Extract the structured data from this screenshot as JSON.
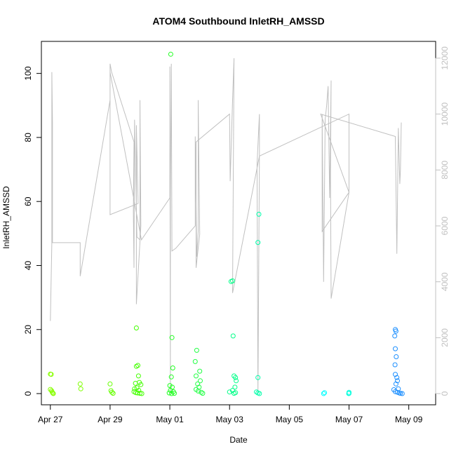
{
  "chart_data": {
    "type": "scatter",
    "title": "ATOM4 Southbound InletRH_AMSSD",
    "xlabel": "Date",
    "ylabel": "InletRH_AMSSD",
    "xlim": [
      -0.3,
      12.9
    ],
    "ylim": [
      -3.5,
      110
    ],
    "y2lim": [
      -400,
      12600
    ],
    "x_ticks": [
      {
        "value": 0,
        "label": "Apr 27"
      },
      {
        "value": 2,
        "label": "Apr 29"
      },
      {
        "value": 4,
        "label": "May 01"
      },
      {
        "value": 6,
        "label": "May 03"
      },
      {
        "value": 8,
        "label": "May 05"
      },
      {
        "value": 10,
        "label": "May 07"
      },
      {
        "value": 12,
        "label": "May 09"
      }
    ],
    "y_ticks": [
      0,
      20,
      40,
      60,
      80,
      100
    ],
    "y2_ticks": [
      0,
      2000,
      4000,
      6000,
      8000,
      10000,
      12000
    ],
    "colors": {
      "axis": "#000000",
      "secondary_axis": "#c0c0c0",
      "line": "#c0c0c0"
    },
    "series": [
      {
        "name": "InletRH_AMSSD",
        "kind": "points",
        "points": [
          {
            "x": 0.0,
            "y": 6.1,
            "color": "#88ff00"
          },
          {
            "x": 0.03,
            "y": 6.0,
            "color": "#88ff00"
          },
          {
            "x": 0.0,
            "y": 1.3,
            "color": "#88ff00"
          },
          {
            "x": 0.04,
            "y": 0.9,
            "color": "#88ff00"
          },
          {
            "x": 0.06,
            "y": 0.5,
            "color": "#88ff00"
          },
          {
            "x": 0.08,
            "y": 0.2,
            "color": "#88ff00"
          },
          {
            "x": 0.1,
            "y": 0.0,
            "color": "#88ff00"
          },
          {
            "x": 1.0,
            "y": 3.0,
            "color": "#7fff00"
          },
          {
            "x": 1.02,
            "y": 1.5,
            "color": "#7fff00"
          },
          {
            "x": 2.0,
            "y": 3.0,
            "color": "#66ff00"
          },
          {
            "x": 2.03,
            "y": 0.9,
            "color": "#66ff00"
          },
          {
            "x": 2.06,
            "y": 0.4,
            "color": "#66ff00"
          },
          {
            "x": 2.1,
            "y": 0.1,
            "color": "#66ff00"
          },
          {
            "x": 2.88,
            "y": 20.5,
            "color": "#44ff00"
          },
          {
            "x": 2.88,
            "y": 8.5,
            "color": "#44ff00"
          },
          {
            "x": 2.93,
            "y": 8.8,
            "color": "#44ff00"
          },
          {
            "x": 2.95,
            "y": 5.5,
            "color": "#44ff00"
          },
          {
            "x": 2.85,
            "y": 3.2,
            "color": "#44ff00"
          },
          {
            "x": 2.98,
            "y": 3.5,
            "color": "#44ff00"
          },
          {
            "x": 3.03,
            "y": 2.8,
            "color": "#44ff00"
          },
          {
            "x": 2.82,
            "y": 1.5,
            "color": "#44ff00"
          },
          {
            "x": 2.9,
            "y": 1.8,
            "color": "#44ff00"
          },
          {
            "x": 2.96,
            "y": 1.0,
            "color": "#44ff00"
          },
          {
            "x": 2.8,
            "y": 0.6,
            "color": "#44ff00"
          },
          {
            "x": 2.86,
            "y": 0.3,
            "color": "#44ff00"
          },
          {
            "x": 2.92,
            "y": 0.2,
            "color": "#44ff00"
          },
          {
            "x": 3.0,
            "y": 0.1,
            "color": "#44ff00"
          },
          {
            "x": 3.06,
            "y": 0.0,
            "color": "#44ff00"
          },
          {
            "x": 4.03,
            "y": 106.0,
            "color": "#22ff22"
          },
          {
            "x": 4.07,
            "y": 17.5,
            "color": "#22ff22"
          },
          {
            "x": 4.1,
            "y": 8.0,
            "color": "#22ff22"
          },
          {
            "x": 4.05,
            "y": 5.2,
            "color": "#22ff22"
          },
          {
            "x": 4.0,
            "y": 2.5,
            "color": "#22ff22"
          },
          {
            "x": 4.08,
            "y": 2.0,
            "color": "#22ff22"
          },
          {
            "x": 4.02,
            "y": 1.0,
            "color": "#22ff22"
          },
          {
            "x": 4.12,
            "y": 0.6,
            "color": "#22ff22"
          },
          {
            "x": 3.98,
            "y": 0.2,
            "color": "#22ff22"
          },
          {
            "x": 4.06,
            "y": 0.0,
            "color": "#22ff22"
          },
          {
            "x": 4.15,
            "y": 0.1,
            "color": "#22ff22"
          },
          {
            "x": 4.9,
            "y": 13.5,
            "color": "#22ff44"
          },
          {
            "x": 4.85,
            "y": 10.0,
            "color": "#22ff44"
          },
          {
            "x": 5.0,
            "y": 7.0,
            "color": "#22ff44"
          },
          {
            "x": 4.88,
            "y": 5.5,
            "color": "#22ff44"
          },
          {
            "x": 5.02,
            "y": 4.0,
            "color": "#22ff44"
          },
          {
            "x": 4.93,
            "y": 3.0,
            "color": "#22ff44"
          },
          {
            "x": 4.98,
            "y": 2.0,
            "color": "#22ff44"
          },
          {
            "x": 4.88,
            "y": 1.3,
            "color": "#22ff44"
          },
          {
            "x": 4.95,
            "y": 0.8,
            "color": "#22ff44"
          },
          {
            "x": 5.05,
            "y": 0.4,
            "color": "#22ff44"
          },
          {
            "x": 5.1,
            "y": 0.1,
            "color": "#22ff44"
          },
          {
            "x": 6.05,
            "y": 35.0,
            "color": "#00ff88"
          },
          {
            "x": 6.1,
            "y": 35.2,
            "color": "#00ff88"
          },
          {
            "x": 6.12,
            "y": 18.0,
            "color": "#00ff88"
          },
          {
            "x": 6.15,
            "y": 5.5,
            "color": "#00ff88"
          },
          {
            "x": 6.2,
            "y": 5.0,
            "color": "#00ff88"
          },
          {
            "x": 6.22,
            "y": 4.0,
            "color": "#00ff88"
          },
          {
            "x": 6.18,
            "y": 2.0,
            "color": "#00ff88"
          },
          {
            "x": 6.1,
            "y": 1.0,
            "color": "#00ff88"
          },
          {
            "x": 6.0,
            "y": 0.5,
            "color": "#00ff88"
          },
          {
            "x": 6.2,
            "y": 0.3,
            "color": "#00ff88"
          },
          {
            "x": 6.15,
            "y": 0.1,
            "color": "#00ff88"
          },
          {
            "x": 6.98,
            "y": 56.0,
            "color": "#00ffaa"
          },
          {
            "x": 6.95,
            "y": 47.2,
            "color": "#00ffaa"
          },
          {
            "x": 6.95,
            "y": 5.0,
            "color": "#00ffaa"
          },
          {
            "x": 6.9,
            "y": 0.5,
            "color": "#00ffaa"
          },
          {
            "x": 6.95,
            "y": 0.2,
            "color": "#00ffaa"
          },
          {
            "x": 7.0,
            "y": 0.0,
            "color": "#00ffaa"
          },
          {
            "x": 10.0,
            "y": 0.4,
            "color": "#00ffdd"
          },
          {
            "x": 10.0,
            "y": 0.1,
            "color": "#00ffdd"
          },
          {
            "x": 9.99,
            "y": 0.0,
            "color": "#00ffdd"
          },
          {
            "x": 11.55,
            "y": 20.0,
            "color": "#1e90ff"
          },
          {
            "x": 11.57,
            "y": 19.5,
            "color": "#1e90ff"
          },
          {
            "x": 11.53,
            "y": 18.0,
            "color": "#1e90ff"
          },
          {
            "x": 11.55,
            "y": 14.0,
            "color": "#1e90ff"
          },
          {
            "x": 11.58,
            "y": 11.5,
            "color": "#1e90ff"
          },
          {
            "x": 11.54,
            "y": 9.0,
            "color": "#1e90ff"
          },
          {
            "x": 11.55,
            "y": 6.0,
            "color": "#1e90ff"
          },
          {
            "x": 11.6,
            "y": 5.0,
            "color": "#1e90ff"
          },
          {
            "x": 11.62,
            "y": 4.0,
            "color": "#1e90ff"
          },
          {
            "x": 11.57,
            "y": 3.0,
            "color": "#1e90ff"
          },
          {
            "x": 11.65,
            "y": 1.5,
            "color": "#1e90ff"
          },
          {
            "x": 11.5,
            "y": 1.2,
            "color": "#1e90ff"
          },
          {
            "x": 11.55,
            "y": 0.6,
            "color": "#1e90ff"
          },
          {
            "x": 11.62,
            "y": 0.4,
            "color": "#1e90ff"
          },
          {
            "x": 11.68,
            "y": 0.2,
            "color": "#1e90ff"
          },
          {
            "x": 11.72,
            "y": 0.1,
            "color": "#1e90ff"
          },
          {
            "x": 11.78,
            "y": 0.0,
            "color": "#1e90ff"
          },
          {
            "x": 9.15,
            "y": 0.0,
            "color": "#00ffff"
          },
          {
            "x": 9.18,
            "y": 0.3,
            "color": "#00ffff"
          }
        ]
      },
      {
        "name": "secondary series (right axis)",
        "kind": "line",
        "axis": "right",
        "points": [
          [
            0.0,
            2600
          ],
          [
            0.05,
            5400
          ],
          [
            0.05,
            11500
          ],
          [
            0.07,
            9700
          ],
          [
            0.07,
            5400
          ],
          [
            1.0,
            5400
          ],
          [
            1.0,
            4200
          ],
          [
            2.0,
            10500
          ],
          [
            2.0,
            11800
          ],
          [
            2.05,
            11500
          ],
          [
            2.8,
            9000
          ],
          [
            2.78,
            6500
          ],
          [
            2.8,
            4500
          ],
          [
            2.82,
            9800
          ],
          [
            2.9,
            5600
          ],
          [
            3.0,
            5500
          ],
          [
            3.0,
            10500
          ],
          [
            3.03,
            6000
          ],
          [
            2.88,
            3200
          ],
          [
            2.88,
            9600
          ],
          [
            2.94,
            6800
          ],
          [
            2.0,
            6400
          ],
          [
            2.0,
            11500
          ],
          [
            3.05,
            5500
          ],
          [
            4.0,
            7000
          ],
          [
            4.0,
            11700
          ],
          [
            4.02,
            0
          ],
          [
            4.02,
            7000
          ],
          [
            4.05,
            11800
          ],
          [
            4.07,
            5100
          ],
          [
            4.2,
            5200
          ],
          [
            4.85,
            6000
          ],
          [
            4.85,
            9200
          ],
          [
            4.9,
            4900
          ],
          [
            4.95,
            5800
          ],
          [
            4.95,
            10500
          ],
          [
            5.0,
            5700
          ],
          [
            4.88,
            4500
          ],
          [
            4.88,
            9000
          ],
          [
            6.0,
            10000
          ],
          [
            6.02,
            7600
          ],
          [
            6.1,
            10500
          ],
          [
            6.15,
            12000
          ],
          [
            6.1,
            3600
          ],
          [
            7.0,
            8500
          ],
          [
            7.0,
            10000
          ],
          [
            6.92,
            8200
          ],
          [
            6.95,
            0
          ],
          [
            7.0,
            8500
          ],
          [
            10.0,
            10000
          ],
          [
            10.0,
            7200
          ],
          [
            9.1,
            5800
          ],
          [
            9.1,
            10000
          ],
          [
            9.15,
            4000
          ],
          [
            9.2,
            9800
          ],
          [
            9.25,
            10300
          ],
          [
            9.3,
            11000
          ],
          [
            9.35,
            7000
          ],
          [
            9.4,
            11200
          ],
          [
            9.38,
            7800
          ],
          [
            9.4,
            3400
          ],
          [
            10.0,
            7200
          ],
          [
            9.05,
            10000
          ],
          [
            11.55,
            9200
          ],
          [
            11.6,
            5000
          ],
          [
            11.65,
            9500
          ],
          [
            11.7,
            7500
          ],
          [
            11.72,
            8000
          ],
          [
            11.75,
            9700
          ]
        ]
      }
    ]
  }
}
